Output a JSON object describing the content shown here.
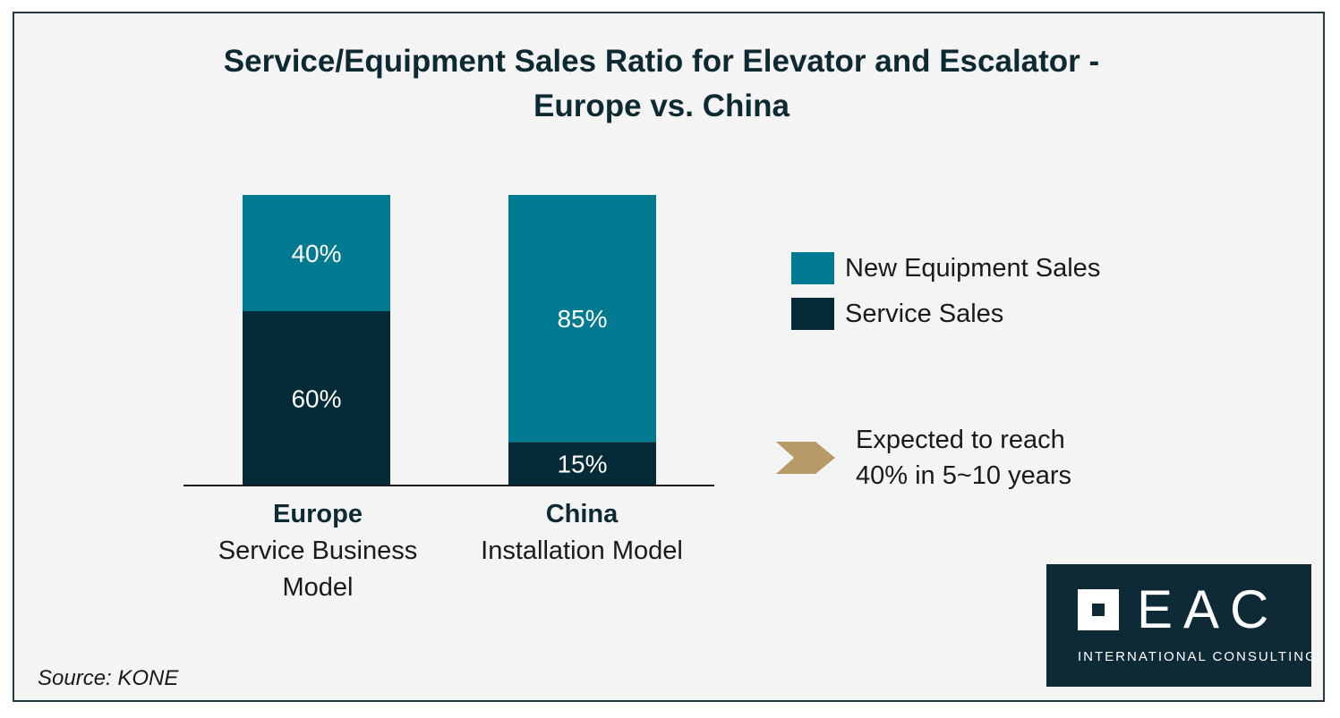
{
  "chart_data": {
    "type": "bar",
    "stacked": true,
    "title_lines": [
      "Service/Equipment Sales Ratio for Elevator and Escalator -",
      "Europe vs. China"
    ],
    "categories": [
      {
        "name": "Europe",
        "subtitle_lines": [
          "Service Business",
          "Model"
        ]
      },
      {
        "name": "China",
        "subtitle_lines": [
          "Installation Model"
        ]
      }
    ],
    "series": [
      {
        "name": "Service Sales",
        "color": "#052b38",
        "values": [
          60,
          15
        ],
        "labels": [
          "60%",
          "15%"
        ]
      },
      {
        "name": "New Equipment Sales",
        "color": "#007a91",
        "values": [
          40,
          85
        ],
        "labels": [
          "40%",
          "85%"
        ]
      }
    ],
    "ylim": [
      0,
      100
    ],
    "legend_order": [
      "New Equipment Sales",
      "Service Sales"
    ],
    "legend_position": "right",
    "annotation_lines": [
      "Expected to reach",
      "40% in 5~10 years"
    ],
    "annotation_icon": "chevron-arrow-icon",
    "annotation_color": "#b69a68"
  },
  "source": "Source: KONE",
  "logo": {
    "main": "EAC",
    "sub": "INTERNATIONAL CONSULTING"
  }
}
